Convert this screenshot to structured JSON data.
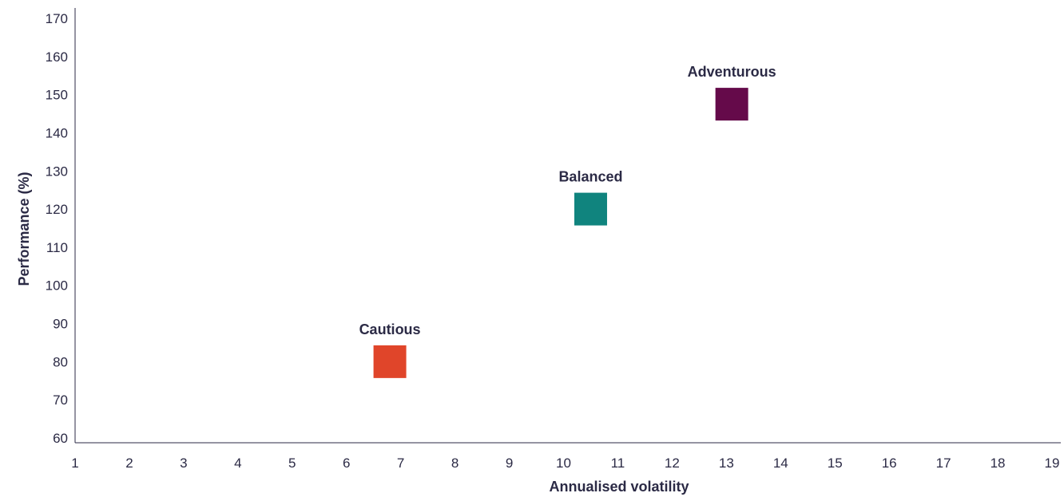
{
  "chart_data": {
    "type": "scatter",
    "title": "",
    "xlabel": "Annualised volatility",
    "ylabel": "Performance (%)",
    "xlim": [
      1,
      19
    ],
    "ylim": [
      60,
      170
    ],
    "x_ticks": [
      1,
      2,
      3,
      4,
      5,
      6,
      7,
      8,
      9,
      10,
      11,
      12,
      13,
      14,
      15,
      16,
      17,
      18,
      19
    ],
    "y_ticks": [
      60,
      70,
      80,
      90,
      100,
      110,
      120,
      130,
      140,
      150,
      160,
      170
    ],
    "grid": false,
    "marker": "square",
    "points": [
      {
        "label": "Cautious",
        "x": 6.8,
        "y": 80,
        "color": "#e0452a"
      },
      {
        "label": "Balanced",
        "x": 10.5,
        "y": 120,
        "color": "#10847e"
      },
      {
        "label": "Adventurous",
        "x": 13.1,
        "y": 147.5,
        "color": "#650a4a"
      }
    ]
  }
}
